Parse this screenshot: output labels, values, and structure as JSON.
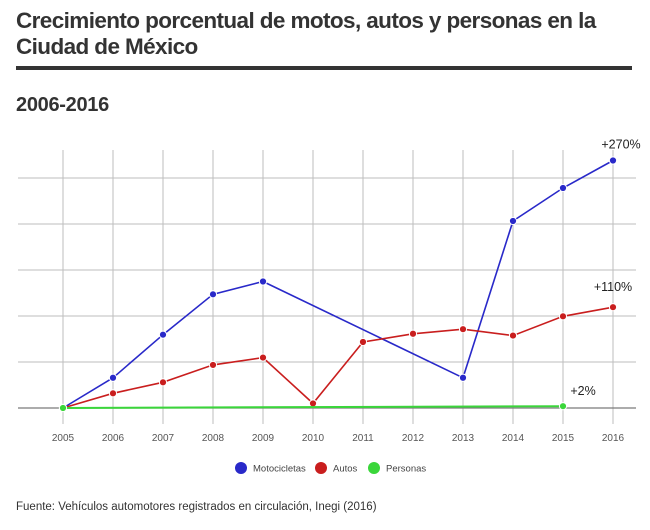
{
  "title": "Crecimiento porcentual de motos, autos y personas en la Ciudad de México",
  "subtitle": "2006-2016",
  "source": "Fuente: Vehículos automotores registrados en circulación, Inegi (2016)",
  "colors": {
    "motocicletas": "#2929c9",
    "autos": "#c91e1e",
    "personas": "#3ad63a",
    "grid": "#bdbdbd",
    "axis": "#7a7a7a"
  },
  "chart_data": {
    "type": "line",
    "categories": [
      "2005",
      "2006",
      "2007",
      "2008",
      "2009",
      "2010",
      "2011",
      "2012",
      "2013",
      "2014",
      "2015",
      "2016"
    ],
    "ylim": [
      0,
      300
    ],
    "grid": true,
    "legend_position": "bottom",
    "series": [
      {
        "name": "Motocicletas",
        "key": "motocicletas",
        "values": [
          0,
          33,
          80,
          124,
          138,
          null,
          null,
          null,
          33,
          204,
          240,
          270
        ],
        "end_label": "+270%"
      },
      {
        "name": "Autos",
        "key": "autos",
        "values": [
          0,
          16,
          28,
          47,
          55,
          5,
          72,
          81,
          86,
          79,
          100,
          110
        ],
        "end_label": "+110%"
      },
      {
        "name": "Personas",
        "key": "personas",
        "values": [
          0,
          null,
          null,
          null,
          null,
          null,
          null,
          null,
          null,
          null,
          2,
          null
        ],
        "end_label": "+2%"
      }
    ]
  }
}
